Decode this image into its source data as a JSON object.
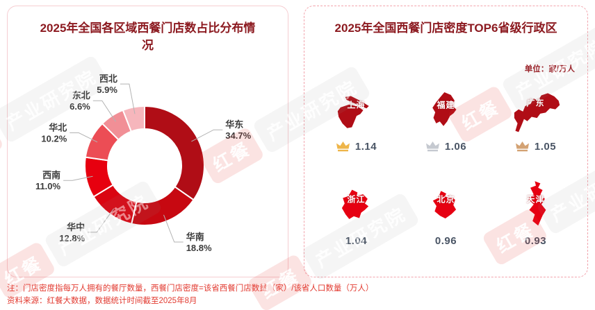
{
  "left_panel": {
    "title": "2025年全国各区域西餐门店数占比分布情况"
  },
  "right_panel": {
    "title": "2025年全国西餐门店密度TOP6省级行政区",
    "unit_label": "单位：家/万人",
    "items": [
      {
        "name": "上海",
        "value": "1.14",
        "medal": "gold"
      },
      {
        "name": "福建",
        "value": "1.06",
        "medal": "silver"
      },
      {
        "name": "广东",
        "value": "1.05",
        "medal": "bronze"
      },
      {
        "name": "浙江",
        "value": "1.04",
        "medal": ""
      },
      {
        "name": "北京",
        "value": "0.96",
        "medal": ""
      },
      {
        "name": "天津",
        "value": "0.93",
        "medal": ""
      }
    ]
  },
  "chart_data": [
    {
      "type": "pie",
      "donut": true,
      "title": "2025年全国各区域西餐门店数占比分布情况",
      "categories": [
        "华东",
        "华南",
        "华中",
        "西南",
        "华北",
        "东北",
        "西北"
      ],
      "values": [
        34.7,
        18.8,
        12.8,
        11.0,
        10.2,
        6.6,
        5.9
      ],
      "unit": "%",
      "colors": [
        "#b00d16",
        "#c70811",
        "#da0511",
        "#e7000f",
        "#ec4d55",
        "#f18f96",
        "#f6b6bc"
      ],
      "legend_position": "outside-labels-with-leader-lines",
      "start_angle_deg": 0,
      "direction": "clockwise"
    },
    {
      "type": "table",
      "title": "2025年全国西餐门店密度TOP6省级行政区",
      "unit": "家/万人",
      "columns": [
        "省级行政区",
        "西餐门店密度"
      ],
      "rows": [
        [
          "上海",
          1.14
        ],
        [
          "福建",
          1.06
        ],
        [
          "广东",
          1.05
        ],
        [
          "浙江",
          1.04
        ],
        [
          "北京",
          0.96
        ],
        [
          "天津",
          0.93
        ]
      ]
    }
  ],
  "footer": {
    "note": "注：门店密度指每万人拥有的餐厅数量，西餐门店密度=该省西餐门店数量（家）/该省人口数量（万人）",
    "source": "资料来源：红餐大数据，数据统计时间截至2025年8月"
  },
  "watermark": {
    "brand": "红餐",
    "institute": "产业研究院"
  },
  "colors": {
    "title_dark_red": "#8c1a20",
    "map_dark": "#b00d16",
    "map_bright": "#e60012",
    "crown_gold": "#eeb549",
    "crown_silver": "#c5c9d0",
    "crown_bronze": "#d3a273",
    "value_text": "#4a5565",
    "footer_red": "#e23a30",
    "label_text": "#3b3b3b"
  }
}
